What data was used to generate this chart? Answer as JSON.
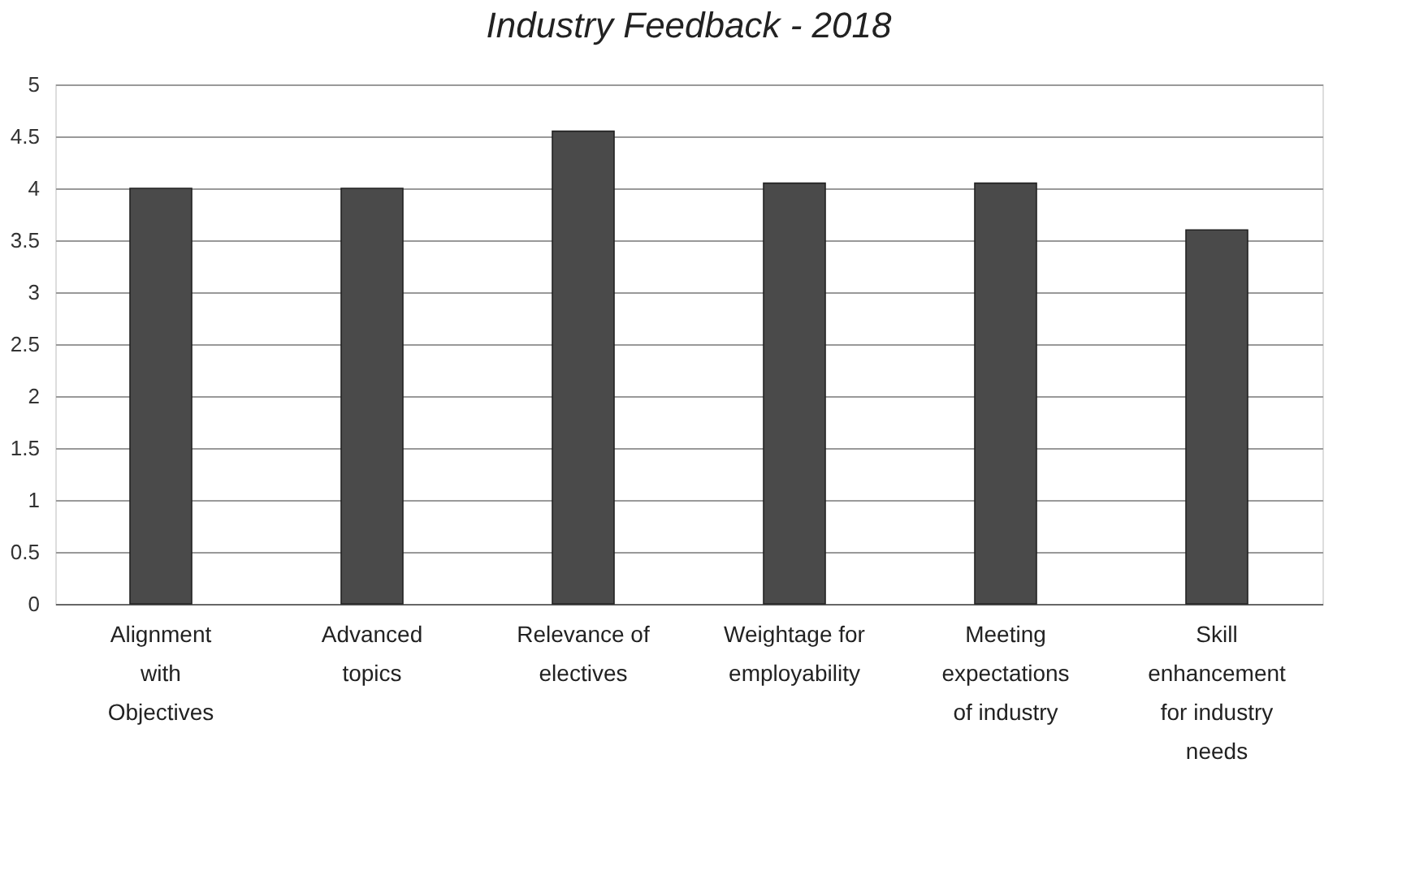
{
  "chart_data": {
    "type": "bar",
    "title": "Industry Feedback - 2018",
    "categories": [
      "Alignment with Objectives",
      "Advanced topics",
      "Relevance of electives",
      "Weightage for employability",
      "Meeting expectations of industry",
      "Skill enhancement for industry needs"
    ],
    "values": [
      4.0,
      4.0,
      4.55,
      4.05,
      4.05,
      3.6
    ],
    "color": "#4a4a4a",
    "ylim": [
      0,
      5
    ],
    "yticks": [
      0,
      0.5,
      1,
      1.5,
      2,
      2.5,
      3,
      3.5,
      4,
      4.5,
      5
    ],
    "grid": "y"
  }
}
